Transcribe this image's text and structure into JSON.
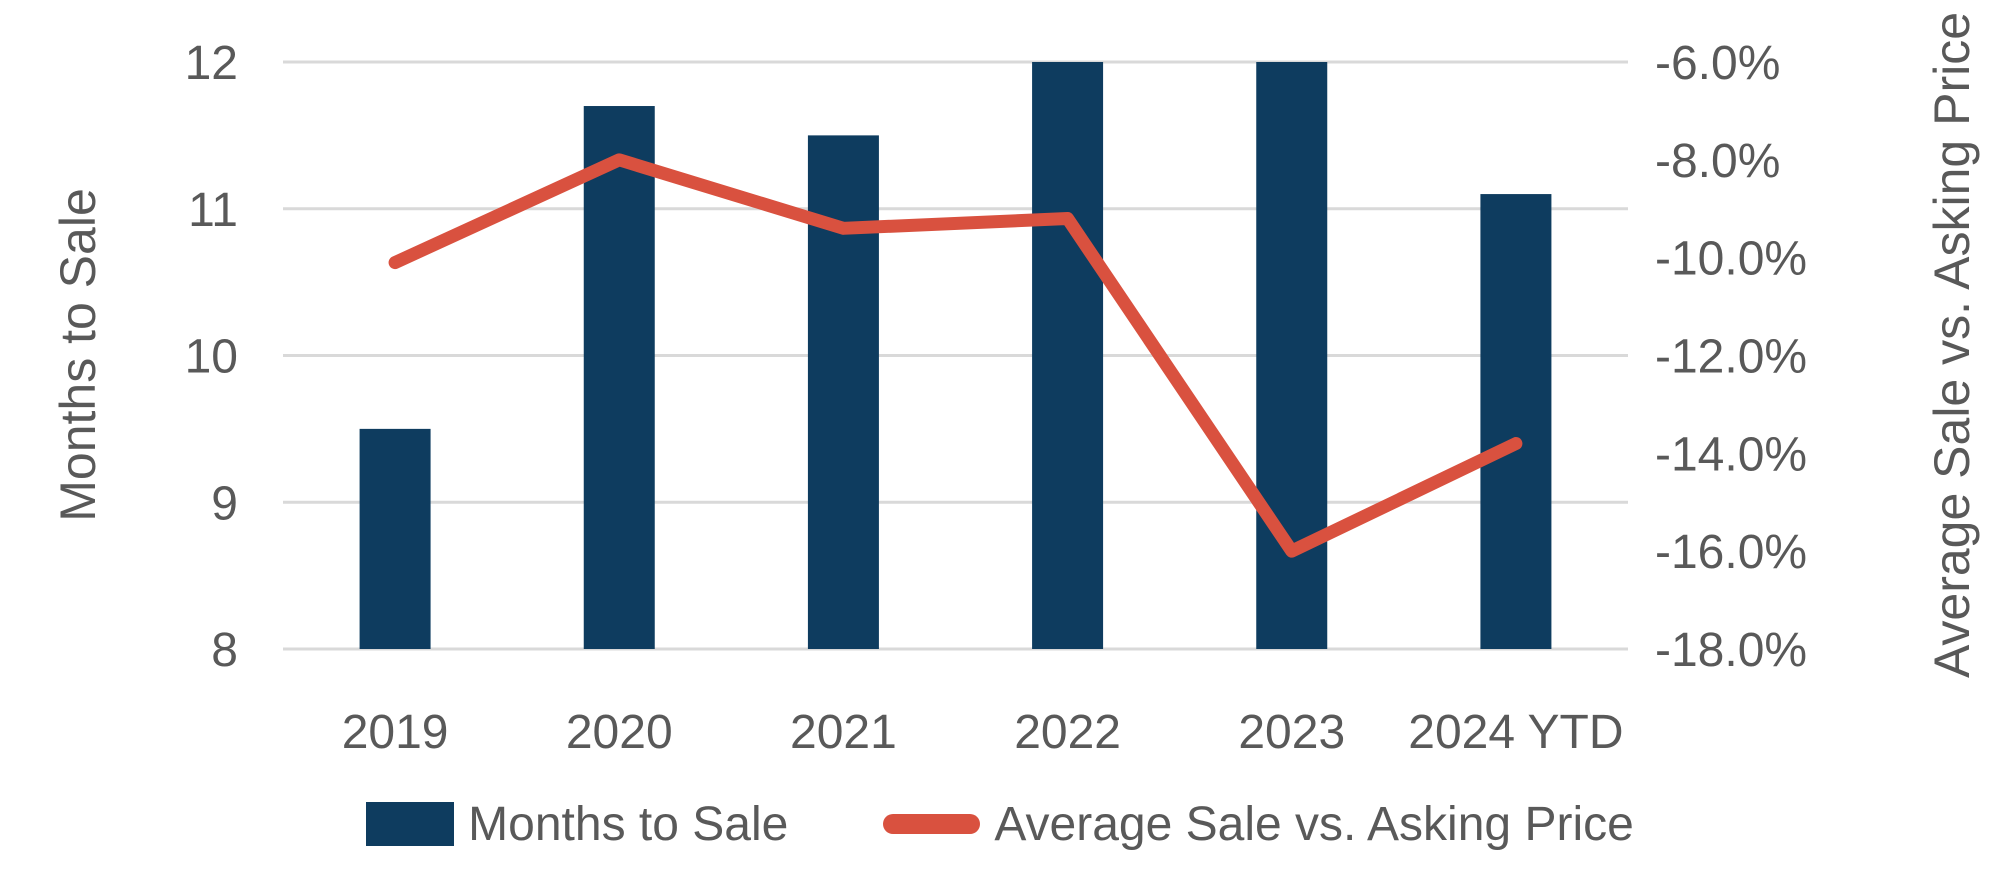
{
  "chart_data": {
    "type": "combo-bar-line",
    "categories": [
      "2019",
      "2020",
      "2021",
      "2022",
      "2023",
      "2024 YTD"
    ],
    "series": [
      {
        "name": "Months to Sale",
        "type": "bar",
        "axis": "left",
        "color": "#0E3C5F",
        "values": [
          9.5,
          11.7,
          11.5,
          12.0,
          12.0,
          11.1
        ]
      },
      {
        "name": "Average Sale vs. Asking Price",
        "type": "line",
        "axis": "right",
        "color": "#D9513F",
        "values": [
          -10.1,
          -8.0,
          -9.4,
          -9.2,
          -16.0,
          -13.8
        ]
      }
    ],
    "left_axis": {
      "title": "Months to Sale",
      "min": 8,
      "max": 12,
      "step": 1,
      "tick_labels": [
        "12",
        "11",
        "10",
        "9",
        "8"
      ]
    },
    "right_axis": {
      "title": "Average Sale vs. Asking Price",
      "min": -18,
      "max": -6,
      "step": 2,
      "tick_labels": [
        "-6.0%",
        "-8.0%",
        "-10.0%",
        "-12.0%",
        "-14.0%",
        "-16.0%",
        "-18.0%"
      ]
    },
    "grid": true,
    "gridline_color": "#D9D9D9",
    "text_color": "#595959",
    "legend_position": "bottom",
    "title": ""
  }
}
